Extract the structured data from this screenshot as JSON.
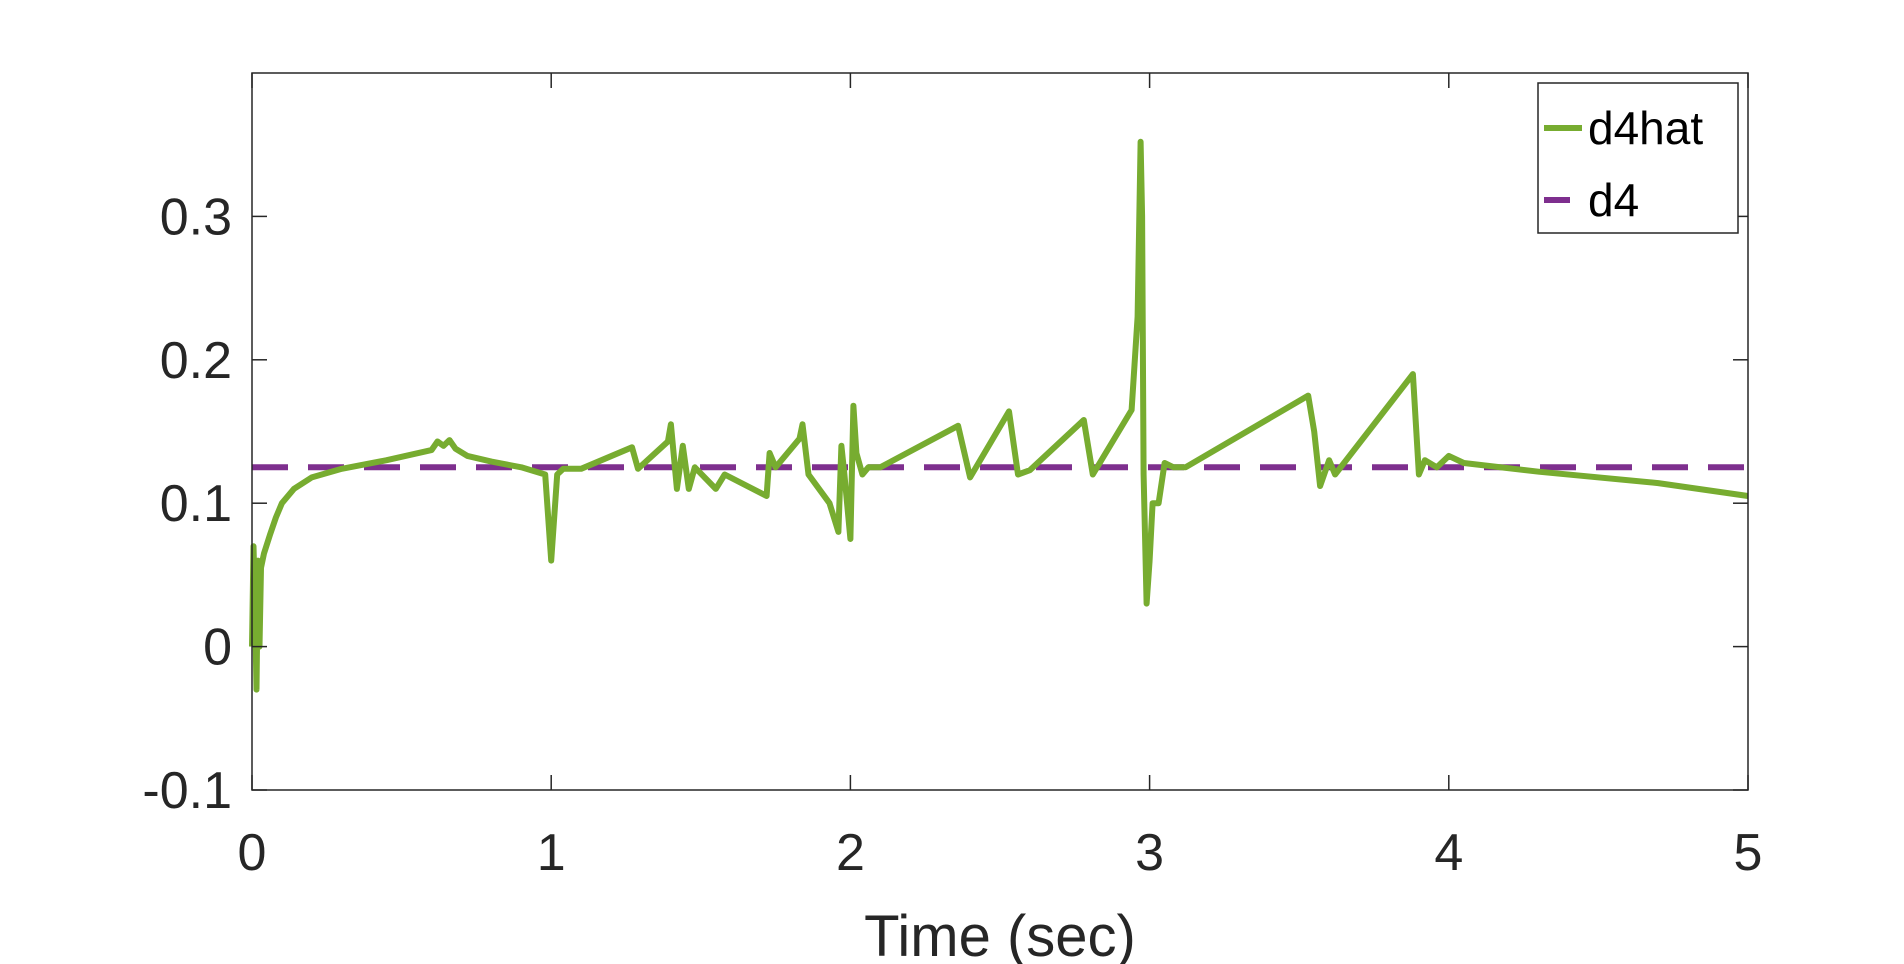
{
  "chart_data": {
    "type": "line",
    "title": "",
    "xlabel": "Time (sec)",
    "ylabel": "",
    "xlim": [
      0,
      5
    ],
    "ylim": [
      -0.1,
      0.4
    ],
    "xticks": [
      "0",
      "1",
      "2",
      "3",
      "4",
      "5"
    ],
    "yticks": [
      "-0.1",
      "0",
      "0.1",
      "0.2",
      "0.3"
    ],
    "grid": false,
    "legend_position": "top-right",
    "series": [
      {
        "name": "d4hat",
        "color": "#77ac30",
        "style": "solid",
        "points": [
          [
            0.0,
            0.0
          ],
          [
            0.005,
            0.07
          ],
          [
            0.01,
            0.03
          ],
          [
            0.015,
            -0.03
          ],
          [
            0.02,
            0.06
          ],
          [
            0.025,
            0.0
          ],
          [
            0.03,
            0.055
          ],
          [
            0.04,
            0.065
          ],
          [
            0.06,
            0.078
          ],
          [
            0.08,
            0.09
          ],
          [
            0.1,
            0.1
          ],
          [
            0.14,
            0.11
          ],
          [
            0.2,
            0.118
          ],
          [
            0.3,
            0.124
          ],
          [
            0.45,
            0.13
          ],
          [
            0.6,
            0.137
          ],
          [
            0.62,
            0.143
          ],
          [
            0.64,
            0.14
          ],
          [
            0.66,
            0.144
          ],
          [
            0.68,
            0.138
          ],
          [
            0.72,
            0.133
          ],
          [
            0.8,
            0.129
          ],
          [
            0.9,
            0.125
          ],
          [
            0.98,
            0.12
          ],
          [
            1.0,
            0.06
          ],
          [
            1.02,
            0.12
          ],
          [
            1.04,
            0.124
          ],
          [
            1.1,
            0.124
          ],
          [
            1.27,
            0.139
          ],
          [
            1.29,
            0.124
          ],
          [
            1.39,
            0.143
          ],
          [
            1.4,
            0.155
          ],
          [
            1.42,
            0.11
          ],
          [
            1.44,
            0.14
          ],
          [
            1.46,
            0.11
          ],
          [
            1.48,
            0.125
          ],
          [
            1.55,
            0.11
          ],
          [
            1.58,
            0.12
          ],
          [
            1.72,
            0.105
          ],
          [
            1.73,
            0.135
          ],
          [
            1.75,
            0.125
          ],
          [
            1.83,
            0.145
          ],
          [
            1.84,
            0.155
          ],
          [
            1.86,
            0.12
          ],
          [
            1.93,
            0.1
          ],
          [
            1.96,
            0.08
          ],
          [
            1.97,
            0.14
          ],
          [
            1.98,
            0.12
          ],
          [
            2.0,
            0.075
          ],
          [
            2.01,
            0.168
          ],
          [
            2.02,
            0.135
          ],
          [
            2.04,
            0.12
          ],
          [
            2.06,
            0.125
          ],
          [
            2.1,
            0.125
          ],
          [
            2.36,
            0.154
          ],
          [
            2.4,
            0.118
          ],
          [
            2.53,
            0.164
          ],
          [
            2.56,
            0.12
          ],
          [
            2.6,
            0.123
          ],
          [
            2.78,
            0.158
          ],
          [
            2.81,
            0.12
          ],
          [
            2.94,
            0.165
          ],
          [
            2.96,
            0.23
          ],
          [
            2.97,
            0.352
          ],
          [
            2.975,
            0.3
          ],
          [
            2.98,
            0.12
          ],
          [
            2.99,
            0.03
          ],
          [
            3.0,
            0.06
          ],
          [
            3.01,
            0.1
          ],
          [
            3.03,
            0.1
          ],
          [
            3.05,
            0.128
          ],
          [
            3.08,
            0.125
          ],
          [
            3.12,
            0.125
          ],
          [
            3.53,
            0.175
          ],
          [
            3.55,
            0.15
          ],
          [
            3.57,
            0.112
          ],
          [
            3.6,
            0.13
          ],
          [
            3.62,
            0.12
          ],
          [
            3.88,
            0.19
          ],
          [
            3.9,
            0.12
          ],
          [
            3.92,
            0.13
          ],
          [
            3.96,
            0.125
          ],
          [
            4.0,
            0.133
          ],
          [
            4.05,
            0.128
          ],
          [
            4.3,
            0.122
          ],
          [
            4.7,
            0.114
          ],
          [
            5.0,
            0.105
          ]
        ]
      },
      {
        "name": "d4",
        "color": "#7e2f8e",
        "style": "dashed",
        "points": [
          [
            0,
            0.125
          ],
          [
            5,
            0.125
          ]
        ]
      }
    ]
  }
}
